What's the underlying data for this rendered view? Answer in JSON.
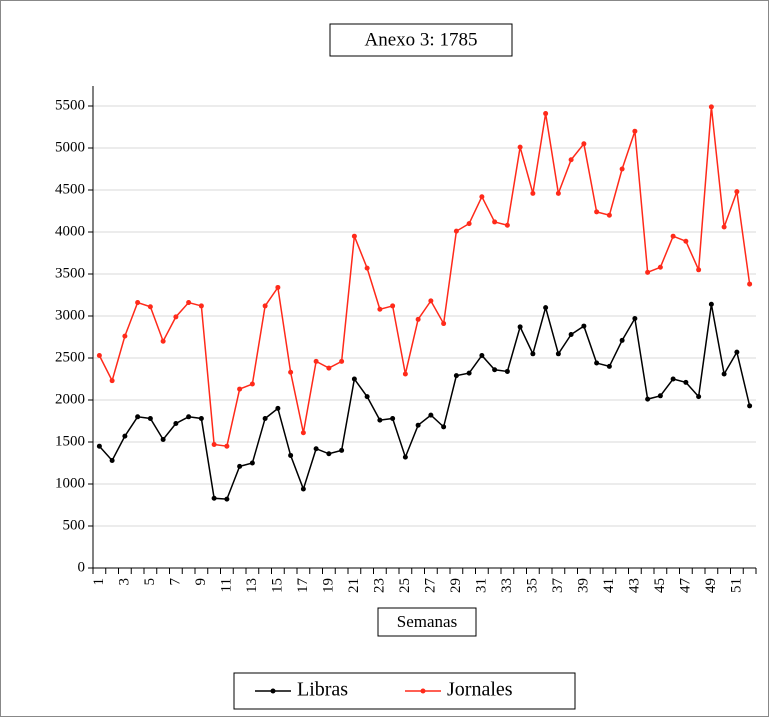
{
  "chart_data": {
    "type": "line",
    "title": "Anexo  3: 1785",
    "x_label": "Semanas",
    "categories": [
      "1",
      null,
      "3",
      null,
      "5",
      null,
      "7",
      null,
      "9",
      null,
      "11",
      null,
      "13",
      null,
      "15",
      null,
      "17",
      null,
      "19",
      null,
      "21",
      null,
      "23",
      null,
      "25",
      null,
      "27",
      null,
      "29",
      null,
      "31",
      null,
      "33",
      null,
      "35",
      null,
      "37",
      null,
      "39",
      null,
      "41",
      null,
      "43",
      null,
      "45",
      null,
      "47",
      null,
      "49",
      null,
      "51",
      null
    ],
    "series": [
      {
        "name": "Libras",
        "color": "#000000",
        "values": [
          1450,
          1280,
          1570,
          1800,
          1780,
          1530,
          1720,
          1800,
          1780,
          830,
          820,
          1210,
          1250,
          1780,
          1900,
          1340,
          940,
          1420,
          1360,
          1400,
          2250,
          2040,
          1760,
          1780,
          1320,
          1700,
          1820,
          1680,
          2290,
          2320,
          2530,
          2360,
          2340,
          2870,
          2550,
          3100,
          2550,
          2780,
          2880,
          2440,
          2400,
          2710,
          2970,
          2010,
          2050,
          2250,
          2210,
          2040,
          3140,
          2310,
          2570,
          1930
        ]
      },
      {
        "name": "Jornales",
        "color": "#ff2a1a",
        "values": [
          2530,
          2230,
          2760,
          3160,
          3110,
          2700,
          2990,
          3160,
          3120,
          1470,
          1450,
          2130,
          2190,
          3120,
          3340,
          2330,
          1610,
          2460,
          2380,
          2460,
          3950,
          3570,
          3080,
          3120,
          2310,
          2960,
          3180,
          2910,
          4010,
          4100,
          4420,
          4120,
          4080,
          5010,
          4460,
          5410,
          4460,
          4860,
          5050,
          4240,
          4200,
          4750,
          5200,
          3520,
          3580,
          3950,
          3890,
          3550,
          5490,
          4060,
          4480,
          3380
        ]
      }
    ],
    "ylim": [
      0,
      5500
    ],
    "yticks": [
      0,
      500,
      1000,
      1500,
      2000,
      2500,
      3000,
      3500,
      4000,
      4500,
      5000,
      5500
    ],
    "grid": true,
    "legend": "bottom"
  }
}
